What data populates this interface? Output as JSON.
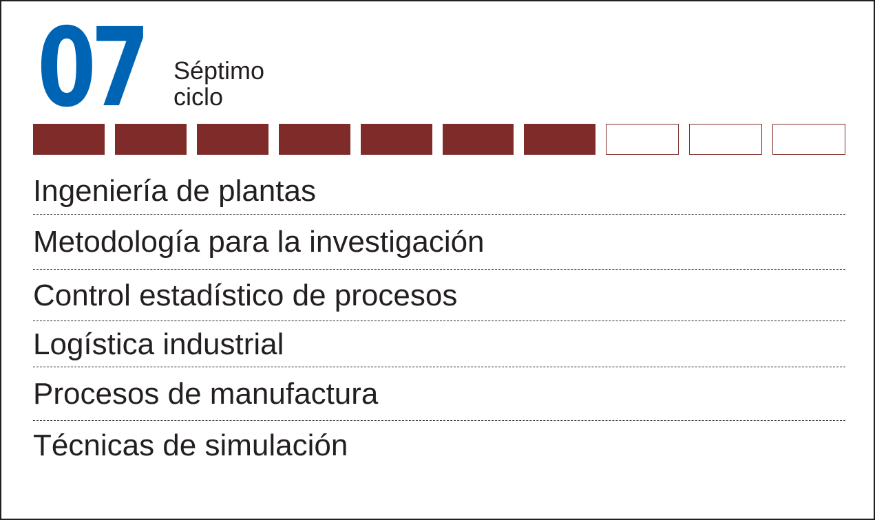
{
  "cycle": {
    "number": "07",
    "label_line1": "Séptimo",
    "label_line2": "ciclo",
    "number_color": "#0064b4"
  },
  "progress": {
    "completed": 7,
    "total": 10,
    "filled_color": "#7f2b29"
  },
  "courses": [
    "Ingeniería de plantas",
    "Metodología para la investigación",
    "Control estadístico de procesos",
    "Logística industrial",
    "Procesos de manufactura",
    "Técnicas de simulación"
  ]
}
